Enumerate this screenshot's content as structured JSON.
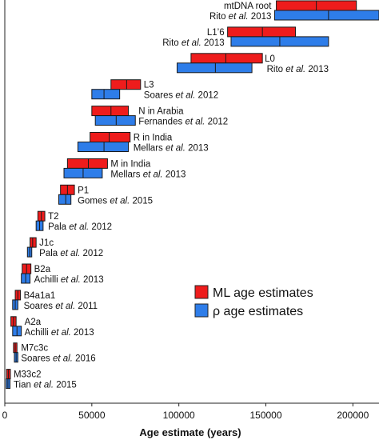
{
  "chart_data": {
    "type": "bar",
    "orientation": "horizontal-ranges",
    "xlabel": "Age estimate (years)",
    "xlim": [
      0,
      215000
    ],
    "x_ticks": [
      0,
      50000,
      100000,
      150000,
      200000
    ],
    "x_tick_labels": [
      "0",
      "50000",
      "100000",
      "150000",
      "200000"
    ],
    "legend": {
      "placement": "right",
      "entries": [
        {
          "name": "ML age estimates",
          "color": "#ee1c1c"
        },
        {
          "name": "ρ age estimates",
          "color": "#2e7de9"
        }
      ]
    },
    "series": [
      {
        "name": "ML age estimates",
        "color": "#ee1c1c"
      },
      {
        "name": "ρ age estimates",
        "color": "#2e7de9"
      }
    ],
    "clades": [
      {
        "label": "mtDNA root",
        "citation": [
          "Rito ",
          "et al.",
          " 2013"
        ],
        "ml": {
          "low": 156000,
          "mid": 179000,
          "high": 202000
        },
        "rho": {
          "low": 155000,
          "mid": 186000,
          "high": 215000
        }
      },
      {
        "label": "L1’6",
        "citation": [
          "Rito ",
          "et al.",
          " 2013"
        ],
        "ml": {
          "low": 128000,
          "mid": 148000,
          "high": 167000
        },
        "rho": {
          "low": 130000,
          "mid": 158000,
          "high": 186000
        }
      },
      {
        "label": "L0",
        "citation": [
          "Rito ",
          "et al.",
          " 2013"
        ],
        "ml": {
          "low": 107000,
          "mid": 127000,
          "high": 148000
        },
        "rho": {
          "low": 99000,
          "mid": 121000,
          "high": 142000
        }
      },
      {
        "label": "L3",
        "citation": [
          "Soares ",
          "et al.",
          " 2012"
        ],
        "ml": {
          "low": 61000,
          "mid": 70000,
          "high": 78000
        },
        "rho": {
          "low": 50000,
          "mid": 57000,
          "high": 66000
        }
      },
      {
        "label": "N in Arabia",
        "citation": [
          "Fernandes ",
          "et al.",
          " 2012"
        ],
        "ml": {
          "low": 50000,
          "mid": 61000,
          "high": 71000
        },
        "rho": {
          "low": 52000,
          "mid": 64000,
          "high": 75000
        }
      },
      {
        "label": "R in India",
        "citation": [
          "Mellars ",
          "et al.",
          " 2013"
        ],
        "ml": {
          "low": 49000,
          "mid": 60000,
          "high": 72000
        },
        "rho": {
          "low": 42000,
          "mid": 57000,
          "high": 71000
        }
      },
      {
        "label": "M in India",
        "citation": [
          "Mellars ",
          "et al.",
          " 2013"
        ],
        "ml": {
          "low": 36000,
          "mid": 48000,
          "high": 59000
        },
        "rho": {
          "low": 34000,
          "mid": 45000,
          "high": 56000
        }
      },
      {
        "label": "P1",
        "citation": [
          "Gomes ",
          "et al.",
          " 2015"
        ],
        "ml": {
          "low": 32000,
          "mid": 36000,
          "high": 40000
        },
        "rho": {
          "low": 31000,
          "mid": 35000,
          "high": 38000
        }
      },
      {
        "label": "T2",
        "citation": [
          "Pala ",
          "et al.",
          " 2012"
        ],
        "ml": {
          "low": 19000,
          "mid": 21000,
          "high": 23000
        },
        "rho": {
          "low": 18000,
          "mid": 20000,
          "high": 22000
        }
      },
      {
        "label": "J1c",
        "citation": [
          "Pala ",
          "et al.",
          " 2012"
        ],
        "ml": {
          "low": 14500,
          "mid": 16000,
          "high": 18000
        },
        "rho": {
          "low": 13000,
          "mid": 14300,
          "high": 15500
        }
      },
      {
        "label": "B2a",
        "citation": [
          "Achilli ",
          "et al.",
          " 2013"
        ],
        "ml": {
          "low": 10000,
          "mid": 12500,
          "high": 15000
        },
        "rho": {
          "low": 9500,
          "mid": 12000,
          "high": 14500
        }
      },
      {
        "label": "B4a1a1",
        "citation": [
          "Soares ",
          "et al.",
          " 2011"
        ],
        "ml": {
          "low": 6000,
          "mid": 7500,
          "high": 9000
        },
        "rho": {
          "low": 4500,
          "mid": 6000,
          "high": 7500
        }
      },
      {
        "label": "A2a",
        "citation": [
          "Achilli ",
          "et al.",
          " 2013"
        ],
        "ml": {
          "low": 3500,
          "mid": 5000,
          "high": 6500
        },
        "rho": {
          "low": 4500,
          "mid": 7000,
          "high": 9500
        }
      },
      {
        "label": "M7c3c",
        "citation": [
          "Soares ",
          "et al.",
          " 2016"
        ],
        "ml": {
          "low": 5000,
          "mid": 6000,
          "high": 7000
        },
        "rho": {
          "low": 5500,
          "mid": 6500,
          "high": 7500
        }
      },
      {
        "label": "M33c2",
        "citation": [
          "Tian ",
          "et al.",
          " 2015"
        ],
        "ml": {
          "low": 1000,
          "mid": 2000,
          "high": 3200
        },
        "rho": {
          "low": 800,
          "mid": 1800,
          "high": 3000
        }
      }
    ]
  }
}
